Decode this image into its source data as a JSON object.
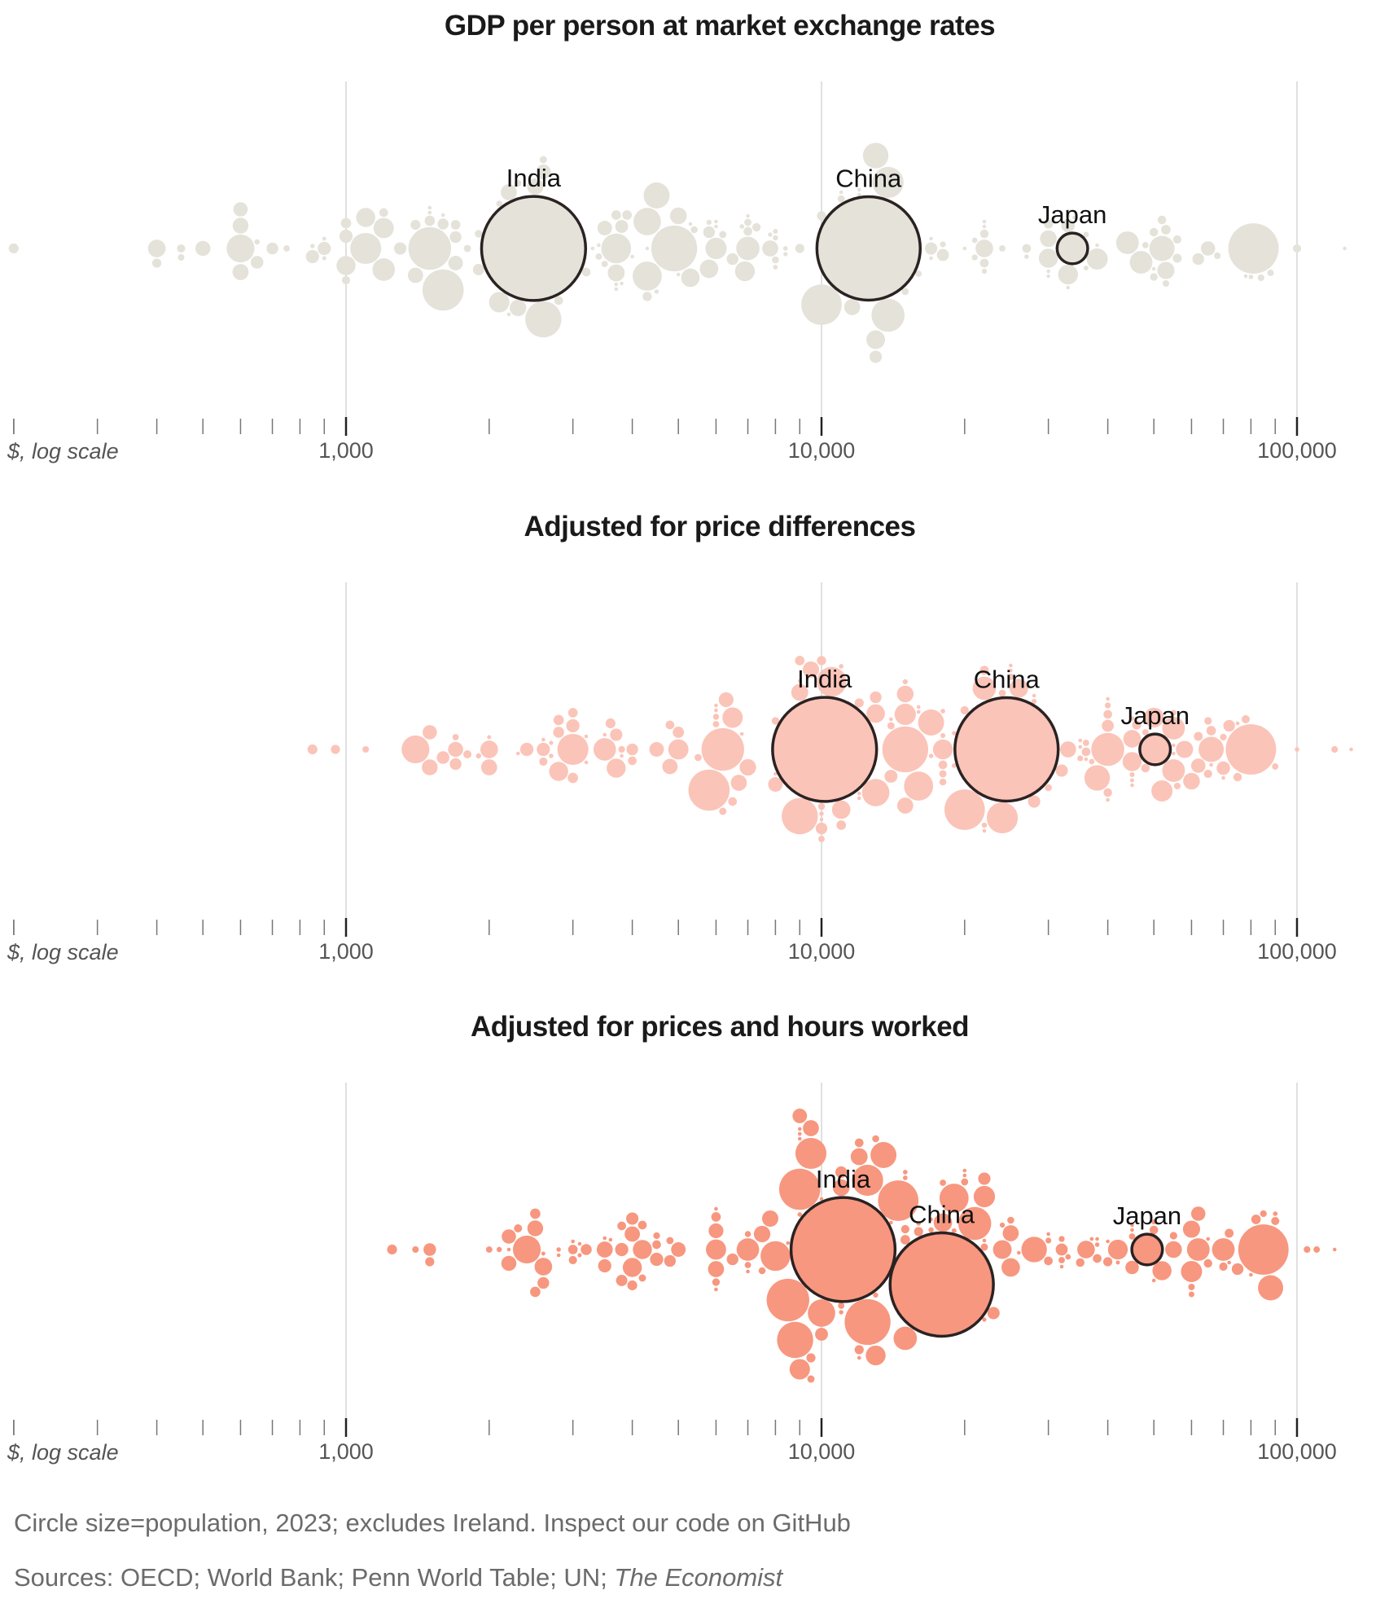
{
  "chart_data": [
    {
      "type": "scatter",
      "title": "GDP per person at market exchange rates",
      "xlabel": "$, log scale",
      "x_scale": "log",
      "xlim": [
        190,
        150000
      ],
      "value_field": 1,
      "fill": "#e4e2d9"
    },
    {
      "type": "scatter",
      "title": "Adjusted for price differences",
      "xlabel": "$, log scale",
      "x_scale": "log",
      "xlim": [
        190,
        150000
      ],
      "value_field": 2,
      "fill": "#fbc4b8"
    },
    {
      "type": "scatter",
      "title": "Adjusted for prices and hours worked",
      "xlabel": "$, log scale",
      "x_scale": "log",
      "xlim": [
        190,
        150000
      ],
      "value_field": 3,
      "fill": "#f7977f"
    }
  ],
  "axis": {
    "major_ticks": [
      1000,
      10000,
      100000
    ],
    "major_tick_labels": [
      "1,000",
      "10,000",
      "100,000"
    ],
    "minor_ticks": [
      200,
      300,
      400,
      500,
      600,
      700,
      800,
      900,
      2000,
      3000,
      4000,
      5000,
      6000,
      7000,
      8000,
      9000,
      20000,
      30000,
      40000,
      50000,
      60000,
      70000,
      80000,
      90000
    ],
    "unit_label": "$, log scale"
  },
  "highlighted": [
    {
      "name": "India",
      "index": 0
    },
    {
      "name": "China",
      "index": 1
    },
    {
      "name": "Japan",
      "index": 2
    }
  ],
  "points_fields": [
    "population_m",
    "gdp_market",
    "gdp_ppp",
    "gdp_ppp_hours"
  ],
  "points": [
    [
      1430,
      2480,
      10150,
      11100
    ],
    [
      1410,
      12560,
      24500,
      17900
    ],
    [
      124,
      33700,
      50300,
      48400
    ],
    [
      335,
      81000,
      80000,
      85000
    ],
    [
      278,
      4900,
      15000,
      12500
    ],
    [
      240,
      1500,
      6200,
      8500
    ],
    [
      224,
      1600,
      5800,
      9000
    ],
    [
      216,
      10000,
      20000,
      14500
    ],
    [
      173,
      2600,
      9000,
      8800
    ],
    [
      144,
      13800,
      40000,
      21000
    ],
    [
      128,
      13800,
      24000,
      12500
    ],
    [
      127,
      1100,
      3000,
      9500
    ],
    [
      117,
      3700,
      10500,
      8000
    ],
    [
      112,
      4300,
      16000,
      19000
    ],
    [
      102,
      600,
      1400,
      2400
    ],
    [
      99,
      4300,
      13000,
      10000
    ],
    [
      89,
      4500,
      17000,
      13500
    ],
    [
      86,
      13000,
      38000,
      28000
    ],
    [
      84,
      52000,
      66000,
      88000
    ],
    [
      72,
      7000,
      22000,
      15000
    ],
    [
      68,
      47000,
      55000,
      62000
    ],
    [
      68,
      44000,
      55000,
      70000
    ],
    [
      67,
      1200,
      3500,
      7000
    ],
    [
      60,
      6000,
      15000,
      22000
    ],
    [
      59,
      38000,
      52000,
      60000
    ],
    [
      55,
      2100,
      6500,
      9000
    ],
    [
      54,
      1200,
      5000,
      6000
    ],
    [
      52,
      33000,
      50000,
      42000
    ],
    [
      52,
      6900,
      18000,
      13000
    ],
    [
      48,
      30000,
      45000,
      52000
    ],
    [
      48,
      1000,
      2800,
      4200
    ],
    [
      48,
      1100,
      3700,
      4000
    ],
    [
      45,
      5300,
      13000,
      25000
    ],
    [
      46,
      13000,
      26000,
      24000
    ],
    [
      45,
      5800,
      11000,
      18000
    ],
    [
      41,
      400,
      2000,
      2600
    ],
    [
      41,
      22000,
      45000,
      36000
    ],
    [
      39,
      53000,
      58000,
      60000
    ],
    [
      38,
      3700,
      9000,
      12000
    ],
    [
      37,
      30000,
      60000,
      55000
    ],
    [
      37,
      5000,
      15000,
      11000
    ],
    [
      36,
      2300,
      7000,
      7500
    ],
    [
      35,
      2500,
      9500,
      7800
    ],
    [
      34,
      600,
      2000,
      3500
    ],
    [
      34,
      7800,
      15000,
      9500
    ],
    [
      34,
      11600,
      33000,
      25000
    ],
    [
      34,
      2200,
      6700,
      6000
    ],
    [
      33,
      600,
      1500,
      2500
    ],
    [
      31,
      1400,
      4800,
      4000
    ],
    [
      30,
      500,
      1700,
      2200
    ],
    [
      29,
      2600,
      6300,
      6000
    ],
    [
      28,
      3500,
      8000,
      9000
    ],
    [
      28,
      1700,
      4500,
      5000
    ],
    [
      27,
      600,
      1500,
      2200
    ],
    [
      27,
      65000,
      62000,
      62000
    ],
    [
      24,
      33000,
      70000,
      45000
    ],
    [
      23,
      900,
      2600,
      3800
    ],
    [
      23,
      850,
      2400,
      3500
    ],
    [
      23,
      1000,
      3000,
      4500
    ],
    [
      22,
      3800,
      14000,
      10000
    ],
    [
      21,
      650,
      1600,
      1500
    ],
    [
      20,
      1300,
      3700,
      4000
    ],
    [
      19,
      18000,
      40000,
      32000
    ],
    [
      20,
      17000,
      28000,
      22000
    ],
    [
      20,
      13000,
      32000,
      23000
    ],
    [
      18,
      700,
      1700,
      2600
    ],
    [
      18,
      6500,
      13000,
      11000
    ],
    [
      18,
      5800,
      10000,
      6500
    ],
    [
      18,
      1700,
      4000,
      4800
    ],
    [
      18,
      62000,
      72000,
      75000
    ],
    [
      17,
      1900,
      5000,
      3800
    ],
    [
      16,
      1600,
      2800,
      3200
    ],
    [
      14,
      1500,
      3000,
      2500
    ],
    [
      14,
      1000,
      2800,
      2500
    ],
    [
      13,
      1400,
      3600,
      4000
    ],
    [
      13,
      200,
      850,
      1250
    ],
    [
      12,
      3900,
      11000,
      15000
    ],
    [
      12,
      3700,
      9000,
      6000
    ],
    [
      12,
      53000,
      66000,
      82000
    ],
    [
      12,
      1700,
      3000,
      3000
    ],
    [
      11,
      9000,
      12000,
      9500
    ],
    [
      11,
      400,
      950,
      1500
    ],
    [
      11,
      10000,
      22000,
      16000
    ],
    [
      11,
      30000,
      46000,
      40000
    ],
    [
      10,
      22000,
      36000,
      30000
    ],
    [
      11,
      4300,
      10000,
      12000
    ],
    [
      10,
      27000,
      40000,
      38000
    ],
    [
      10.5,
      56000,
      62000,
      72000
    ],
    [
      10,
      7000,
      18000,
      12000
    ],
    [
      9.6,
      22000,
      40000,
      35000
    ],
    [
      9.5,
      50000,
      75000,
      65000
    ],
    [
      10,
      3200,
      6500,
      4500
    ],
    [
      9.2,
      7300,
      20000,
      15000
    ],
    [
      9.7,
      52000,
      48000,
      50000
    ],
    [
      10,
      1200,
      4800,
      4200
    ],
    [
      9,
      56000,
      65000,
      70000
    ],
    [
      8.8,
      100000,
      78000,
      90000
    ],
    [
      10,
      2800,
      4000,
      3800
    ],
    [
      9,
      1000,
      2600,
      3000
    ],
    [
      8.8,
      450,
      1800,
      2300
    ],
    [
      7.6,
      1900,
      8000,
      6000
    ],
    [
      6.9,
      6200,
      14000,
      9500
    ],
    [
      6.9,
      7000,
      18000,
      22000
    ],
    [
      6.5,
      15000,
      30000,
      25000
    ],
    [
      6.6,
      11000,
      24000,
      20000
    ],
    [
      6.4,
      5400,
      10000,
      7500
    ],
    [
      6.7,
      1800,
      5500,
      4800
    ],
    [
      7,
      2600,
      6200,
      4200
    ],
    [
      6.5,
      8000,
      18000,
      13000
    ],
    [
      5.9,
      68000,
      70000,
      85000
    ],
    [
      5.9,
      84000,
      120000,
      105000
    ],
    [
      5.6,
      53000,
      56000,
      60000
    ],
    [
      6,
      2300,
      3800,
      4500
    ],
    [
      5.4,
      24000,
      36000,
      32000
    ],
    [
      5.5,
      88000,
      90000,
      110000
    ],
    [
      4.6,
      21000,
      40000,
      32000
    ],
    [
      5.4,
      3400,
      6000,
      7000
    ],
    [
      5.2,
      16000,
      25000,
      18000
    ],
    [
      5.4,
      750,
      1700,
      2000
    ],
    [
      5.4,
      3500,
      10000,
      11000
    ],
    [
      5.2,
      48000,
      48000,
      45000
    ],
    [
      5.7,
      450,
      1100,
      1400
    ],
    [
      4.9,
      2100,
      6000,
      7000
    ],
    [
      4.3,
      36000,
      55000,
      60000
    ],
    [
      4.5,
      18000,
      35000,
      30000
    ],
    [
      3.9,
      21000,
      37000,
      33000
    ],
    [
      3.7,
      8000,
      22000,
      17000
    ],
    [
      3.7,
      650,
      1900,
      2100
    ],
    [
      3.4,
      22000,
      28000,
      24000
    ],
    [
      3.4,
      5800,
      15000,
      13000
    ],
    [
      3.2,
      8000,
      18000,
      19000
    ],
    [
      2.8,
      8000,
      19000,
      15000
    ],
    [
      2.8,
      8400,
      18000,
      15000
    ],
    [
      2.7,
      27000,
      45000,
      38000
    ],
    [
      2.8,
      6800,
      11000,
      9000
    ],
    [
      2.7,
      80000,
      100000,
      90000
    ],
    [
      2.6,
      4500,
      10000,
      11000
    ],
    [
      2.7,
      850,
      2700,
      2800
    ],
    [
      2.6,
      7800,
      17000,
      16000
    ],
    [
      2.4,
      8400,
      19000,
      22000
    ],
    [
      2.3,
      900,
      2700,
      3100
    ],
    [
      2.1,
      33000,
      45000,
      42000
    ],
    [
      1.8,
      22000,
      36000,
      32000
    ],
    [
      2.1,
      900,
      2000,
      2600
    ],
    [
      1.8,
      6000,
      14000,
      12000
    ],
    [
      1.5,
      30000,
      55000,
      45000
    ],
    [
      1.5,
      17000,
      28000,
      26000
    ],
    [
      1.4,
      30000,
      40000,
      38000
    ],
    [
      1.4,
      1500,
      3500,
      3000
    ],
    [
      1.3,
      11000,
      25000,
      20000
    ],
    [
      1.2,
      3800,
      9000,
      9000
    ],
    [
      1.1,
      3400,
      6000,
      7000
    ],
    [
      0.9,
      5300,
      12000,
      10000
    ],
    [
      1.3,
      34000,
      45000,
      40000
    ],
    [
      0.85,
      1500,
      3200,
      3500
    ],
    [
      0.8,
      20000,
      40000,
      45000
    ],
    [
      0.78,
      3700,
      12000,
      9000
    ],
    [
      0.74,
      2200,
      2600,
      2800
    ],
    [
      0.62,
      12000,
      25000,
      22000
    ],
    [
      0.66,
      126000,
      130000,
      120000
    ],
    [
      0.62,
      6000,
      16000,
      14000
    ],
    [
      0.6,
      4300,
      8000,
      8500
    ],
    [
      0.53,
      38000,
      55000,
      50000
    ],
    [
      0.45,
      33000,
      70000,
      80000
    ],
    [
      0.41,
      7000,
      10000,
      9000
    ],
    [
      0.41,
      33000,
      35000,
      37000
    ],
    [
      0.52,
      12000,
      22000,
      20000
    ],
    [
      0.39,
      78000,
      66000,
      72000
    ],
    [
      0.33,
      3300,
      3200,
      3100
    ],
    [
      0.28,
      22000,
      16000,
      17000
    ],
    [
      0.22,
      4000,
      6000,
      6000
    ],
    [
      0.1,
      5000,
      6800,
      6000
    ],
    [
      0.12,
      17000,
      35000,
      30000
    ],
    [
      0.13,
      1600,
      2300,
      2200
    ],
    [
      0.11,
      3700,
      3800,
      3600
    ],
    [
      0.7,
      50000,
      75000,
      65000
    ],
    [
      7.5,
      50000,
      65000,
      55000
    ],
    [
      3.2,
      36000,
      45000,
      50000
    ]
  ],
  "footer": {
    "note": "Circle size=population, 2023; excludes Ireland. Inspect our code on GitHub",
    "sources_prefix": "Sources: OECD; World Bank; Penn World Table; UN; ",
    "sources_italic": "The Economist"
  }
}
